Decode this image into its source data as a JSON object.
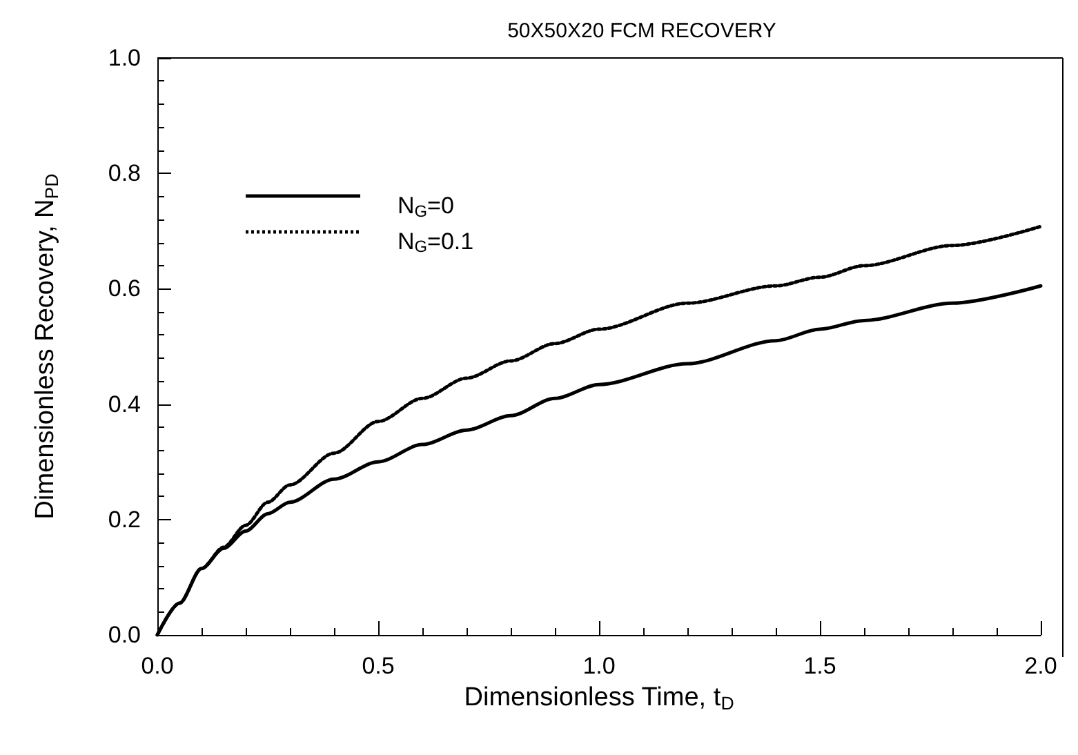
{
  "chart_data": {
    "type": "line",
    "title": "50X50X20 FCM RECOVERY",
    "xlabel": "Dimensionless Time, t$_{D}$",
    "ylabel": "Dimensionless Recovery, N$_{PD}$",
    "xlim": [
      0,
      2
    ],
    "xticks": [
      {
        "value": 0,
        "label": "0.0"
      },
      0.5,
      {
        "value": 1,
        "label": "1.0"
      },
      1.5,
      {
        "value": 2,
        "label": "2.0"
      }
    ],
    "ylim": [
      0,
      1
    ],
    "yticks": [
      {
        "value": 0,
        "label": "0.0"
      },
      0.2,
      0.4,
      0.6,
      0.8,
      {
        "value": 1,
        "label": "1.0"
      }
    ],
    "grid": false,
    "legend": "top left",
    "marker": "none",
    "series": [
      {
        "name": "N$_{G}$=0",
        "color": "#000000",
        "line_style": "solid",
        "x": [
          0,
          0.05,
          0.1,
          0.15,
          0.2,
          0.25,
          0.3,
          0.4,
          0.5,
          0.6,
          0.7,
          0.8,
          0.9,
          1.0,
          1.2,
          1.4,
          1.5,
          1.6,
          1.8,
          2.0
        ],
        "values": [
          0,
          0.055,
          0.115,
          0.15,
          0.18,
          0.21,
          0.23,
          0.27,
          0.3,
          0.33,
          0.355,
          0.38,
          0.41,
          0.434,
          0.47,
          0.51,
          0.53,
          0.545,
          0.575,
          0.605
        ]
      },
      {
        "name": "N$_{G}$=0.1",
        "color": "#000000",
        "line_style": "dotted",
        "x": [
          0,
          0.05,
          0.1,
          0.15,
          0.2,
          0.25,
          0.3,
          0.4,
          0.5,
          0.6,
          0.7,
          0.8,
          0.9,
          1.0,
          1.2,
          1.4,
          1.5,
          1.6,
          1.8,
          2.0
        ],
        "values": [
          0,
          0.055,
          0.115,
          0.152,
          0.19,
          0.23,
          0.26,
          0.315,
          0.37,
          0.41,
          0.445,
          0.475,
          0.505,
          0.53,
          0.575,
          0.605,
          0.62,
          0.64,
          0.675,
          0.708
        ]
      }
    ]
  }
}
